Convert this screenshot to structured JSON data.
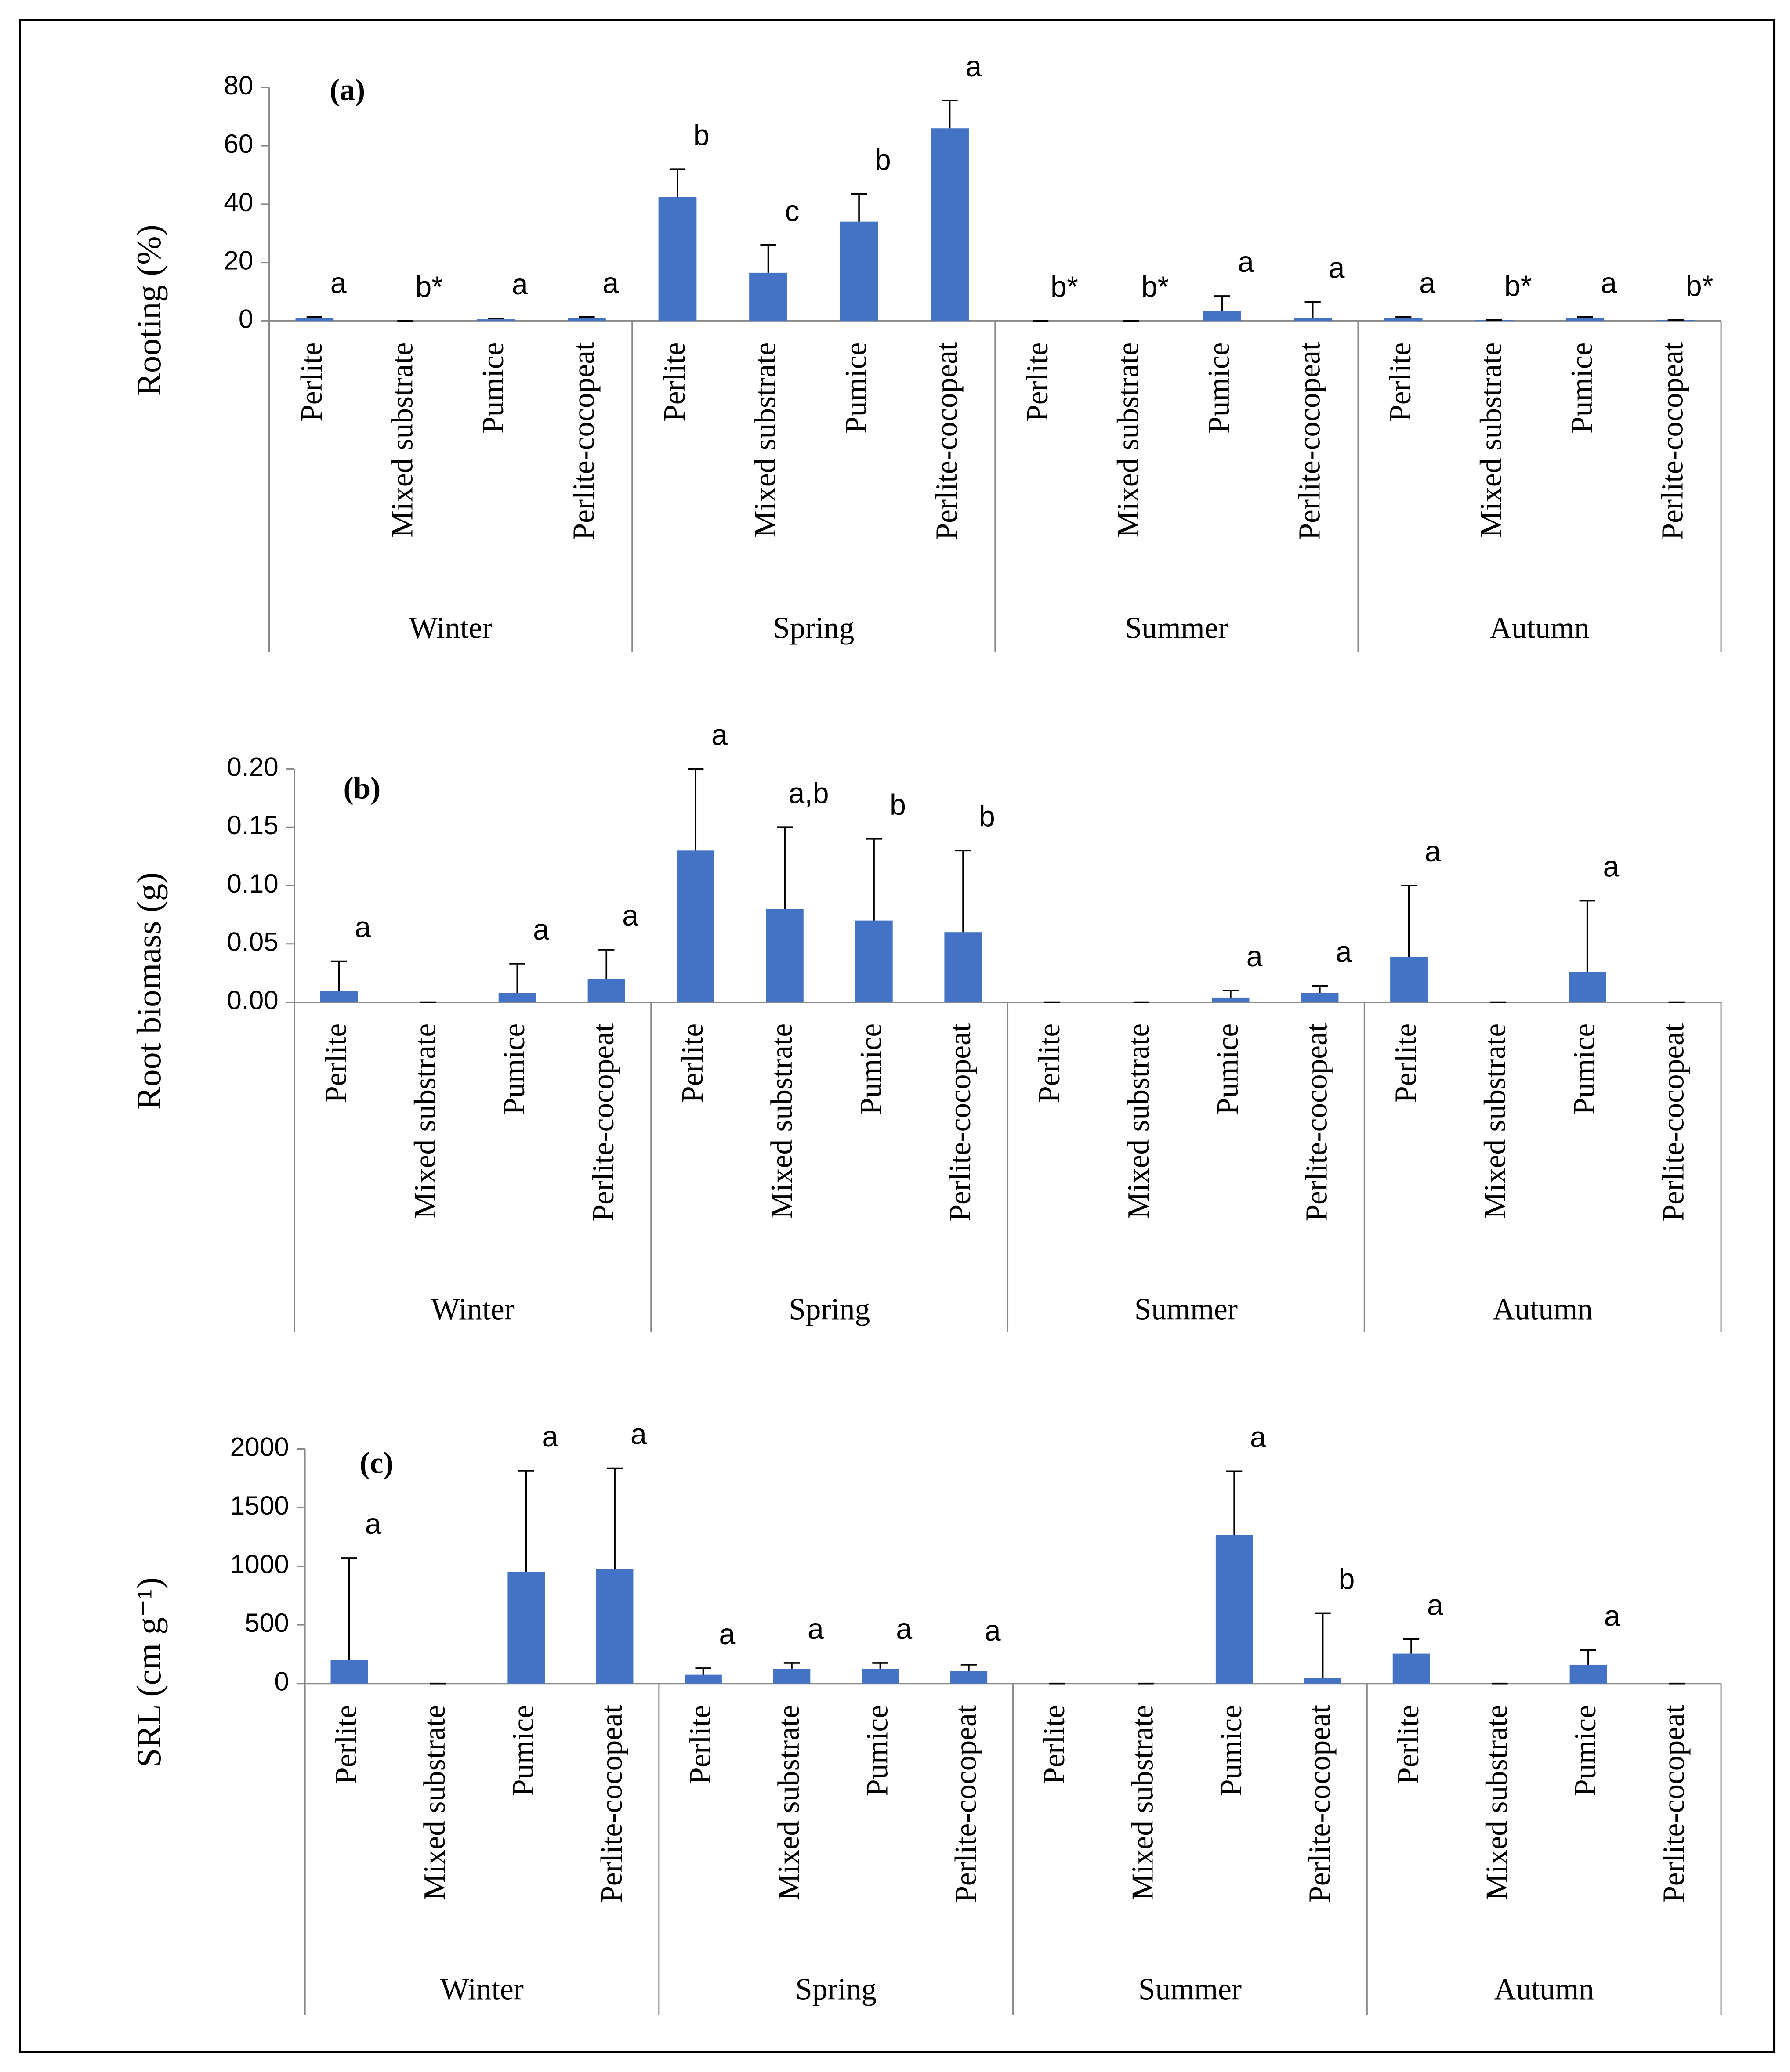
{
  "chart_data": [
    {
      "type": "bar",
      "title": "(a)",
      "ylabel": "Rooting (%)",
      "color": "#4472c4",
      "groups": [
        "Winter",
        "Spring",
        "Summer",
        "Autumn"
      ],
      "categories": [
        "Perlite",
        "Mixed substrate",
        "Pumice",
        "Perlite-cocopeat",
        "Perlite",
        "Mixed substrate",
        "Pumice",
        "Perlite-cocopeat",
        "Perlite",
        "Mixed substrate",
        "Pumice",
        "Perlite-cocopeat",
        "Perlite",
        "Mixed substrate",
        "Pumice",
        "Perlite-cocopeat"
      ],
      "values": [
        1,
        0,
        0.5,
        1,
        42.5,
        16.5,
        34,
        66,
        0,
        0,
        3.5,
        1,
        1,
        0.3,
        1,
        0.3
      ],
      "errors": [
        0.3,
        0,
        0.3,
        0.3,
        9.5,
        9.5,
        9.5,
        9.5,
        0,
        0,
        5,
        5.5,
        0.3,
        0,
        0.3,
        0
      ],
      "annotations": [
        "a",
        "b*",
        "a",
        "a",
        "b",
        "c",
        "b",
        "a",
        "b*",
        "b*",
        "a",
        "a",
        "a",
        "b*",
        "a",
        "b*"
      ],
      "ylim": [
        0,
        80
      ],
      "yticks": [
        0,
        20,
        40,
        60,
        80
      ]
    },
    {
      "type": "bar",
      "title": "(b)",
      "ylabel": "Root biomass (g)",
      "color": "#4472c4",
      "groups": [
        "Winter",
        "Spring",
        "Summer",
        "Autumn"
      ],
      "categories": [
        "Perlite",
        "Mixed substrate",
        "Pumice",
        "Perlite-cocopeat",
        "Perlite",
        "Mixed substrate",
        "Pumice",
        "Perlite-cocopeat",
        "Perlite",
        "Mixed substrate",
        "Pumice",
        "Perlite-cocopeat",
        "Perlite",
        "Mixed substrate",
        "Pumice",
        "Perlite-cocopeat"
      ],
      "values": [
        0.01,
        0,
        0.008,
        0.02,
        0.13,
        0.08,
        0.07,
        0.06,
        0,
        0,
        0.004,
        0.008,
        0.039,
        0,
        0.026,
        0
      ],
      "errors": [
        0.025,
        0,
        0.025,
        0.025,
        0.07,
        0.07,
        0.07,
        0.07,
        0,
        0,
        0.006,
        0.006,
        0.061,
        0,
        0.061,
        0
      ],
      "annotations": [
        "a",
        null,
        "a",
        "a",
        "a",
        "a,b",
        "b",
        "b",
        null,
        null,
        "a",
        "a",
        "a",
        null,
        "a",
        null
      ],
      "ylim": [
        0,
        0.2
      ],
      "yticks": [
        {
          "value": 0,
          "label": "0.00"
        },
        {
          "value": 0.05,
          "label": "0.05"
        },
        {
          "value": 0.1,
          "label": "0.10"
        },
        {
          "value": 0.15,
          "label": "0.15"
        },
        {
          "value": 0.2,
          "label": "0.20"
        }
      ]
    },
    {
      "type": "bar",
      "title": "(c)",
      "ylabel": "SRL (cm g⁻¹)",
      "color": "#4472c4",
      "groups": [
        "Winter",
        "Spring",
        "Summer",
        "Autumn"
      ],
      "categories": [
        "Perlite",
        "Mixed substrate",
        "Pumice",
        "Perlite-cocopeat",
        "Perlite",
        "Mixed substrate",
        "Pumice",
        "Perlite-cocopeat",
        "Perlite",
        "Mixed substrate",
        "Pumice",
        "Perlite-cocopeat",
        "Perlite",
        "Mixed substrate",
        "Pumice",
        "Perlite-cocopeat"
      ],
      "values": [
        200,
        0,
        950,
        975,
        75,
        125,
        125,
        110,
        0,
        0,
        1265,
        50,
        255,
        0,
        160,
        0
      ],
      "errors": [
        870,
        0,
        865,
        860,
        55,
        50,
        50,
        50,
        0,
        0,
        545,
        550,
        125,
        0,
        125,
        0
      ],
      "annotations": [
        "a",
        null,
        "a",
        "a",
        "a",
        "a",
        "a",
        "a",
        null,
        null,
        "a",
        "b",
        "a",
        null,
        "a",
        null
      ],
      "ylim": [
        0,
        2000
      ],
      "yticks": [
        0,
        500,
        1000,
        1500,
        2000
      ]
    }
  ]
}
